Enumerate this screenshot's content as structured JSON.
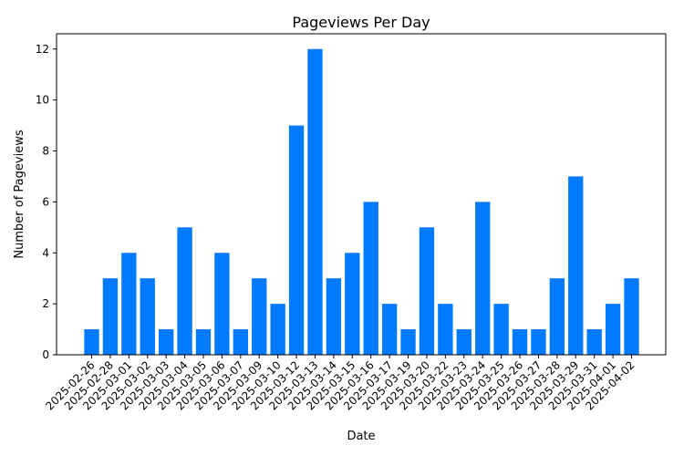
{
  "chart_data": {
    "type": "bar",
    "title": "Pageviews Per Day",
    "xlabel": "Date",
    "ylabel": "Number of Pageviews",
    "ylim": [
      0,
      12.6
    ],
    "yticks": [
      0,
      2,
      4,
      6,
      8,
      10,
      12
    ],
    "grid": false,
    "bar_color": "#007bff",
    "categories": [
      "2025-02-26",
      "2025-02-28",
      "2025-03-01",
      "2025-03-02",
      "2025-03-03",
      "2025-03-04",
      "2025-03-05",
      "2025-03-06",
      "2025-03-07",
      "2025-03-09",
      "2025-03-10",
      "2025-03-12",
      "2025-03-13",
      "2025-03-14",
      "2025-03-15",
      "2025-03-16",
      "2025-03-17",
      "2025-03-19",
      "2025-03-20",
      "2025-03-22",
      "2025-03-23",
      "2025-03-24",
      "2025-03-25",
      "2025-03-26",
      "2025-03-27",
      "2025-03-28",
      "2025-03-29",
      "2025-03-31",
      "2025-04-01",
      "2025-04-02"
    ],
    "values": [
      1,
      3,
      4,
      3,
      1,
      5,
      1,
      4,
      1,
      3,
      2,
      9,
      12,
      3,
      4,
      6,
      2,
      1,
      5,
      2,
      1,
      6,
      2,
      1,
      1,
      3,
      7,
      1,
      2,
      3
    ]
  }
}
